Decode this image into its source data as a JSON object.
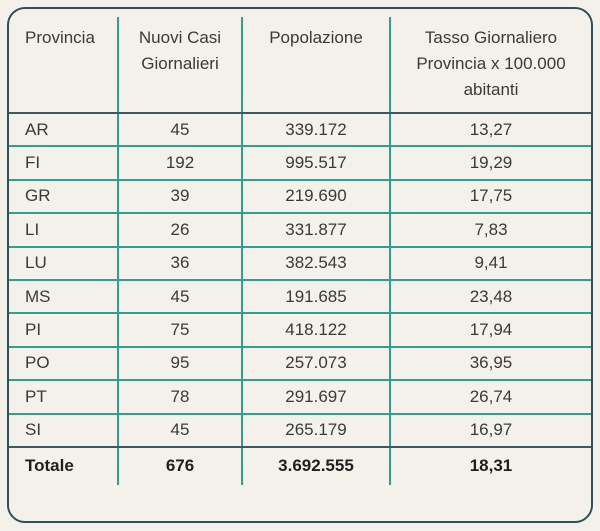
{
  "colors": {
    "bg": "#f3f1ea",
    "teal": "#2fa08c",
    "dark": "#3a5a64",
    "frame": "#2e505a",
    "text": "#3a3a3a"
  },
  "table": {
    "columns": [
      "Provincia",
      "Nuovi Casi Giornalieri",
      "Popolazione",
      "Tasso Giornaliero Provincia x 100.000 abitanti"
    ],
    "rows": [
      {
        "provincia": "AR",
        "nuovi_casi": "45",
        "popolazione": "339.172",
        "tasso": "13,27"
      },
      {
        "provincia": "FI",
        "nuovi_casi": "192",
        "popolazione": "995.517",
        "tasso": "19,29"
      },
      {
        "provincia": "GR",
        "nuovi_casi": "39",
        "popolazione": "219.690",
        "tasso": "17,75"
      },
      {
        "provincia": "LI",
        "nuovi_casi": "26",
        "popolazione": "331.877",
        "tasso": "7,83"
      },
      {
        "provincia": "LU",
        "nuovi_casi": "36",
        "popolazione": "382.543",
        "tasso": "9,41"
      },
      {
        "provincia": "MS",
        "nuovi_casi": "45",
        "popolazione": "191.685",
        "tasso": "23,48"
      },
      {
        "provincia": "PI",
        "nuovi_casi": "75",
        "popolazione": "418.122",
        "tasso": "17,94"
      },
      {
        "provincia": "PO",
        "nuovi_casi": "95",
        "popolazione": "257.073",
        "tasso": "36,95"
      },
      {
        "provincia": "PT",
        "nuovi_casi": "78",
        "popolazione": "291.697",
        "tasso": "26,74"
      },
      {
        "provincia": "SI",
        "nuovi_casi": "45",
        "popolazione": "265.179",
        "tasso": "16,97"
      }
    ],
    "total": {
      "provincia": "Totale",
      "nuovi_casi": "676",
      "popolazione": "3.692.555",
      "tasso": "18,31"
    }
  },
  "chart_data": {
    "type": "table",
    "title": "",
    "columns": [
      "Provincia",
      "Nuovi Casi Giornalieri",
      "Popolazione",
      "Tasso Giornaliero Provincia x 100.000 abitanti"
    ],
    "rows": [
      [
        "AR",
        "45",
        "339.172",
        "13,27"
      ],
      [
        "FI",
        "192",
        "995.517",
        "19,29"
      ],
      [
        "GR",
        "39",
        "219.690",
        "17,75"
      ],
      [
        "LI",
        "26",
        "331.877",
        "7,83"
      ],
      [
        "LU",
        "36",
        "382.543",
        "9,41"
      ],
      [
        "MS",
        "45",
        "191.685",
        "23,48"
      ],
      [
        "PI",
        "75",
        "418.122",
        "17,94"
      ],
      [
        "PO",
        "95",
        "257.073",
        "36,95"
      ],
      [
        "PT",
        "78",
        "291.697",
        "26,74"
      ],
      [
        "SI",
        "45",
        "265.179",
        "16,97"
      ],
      [
        "Totale",
        "676",
        "3.692.555",
        "18,31"
      ]
    ]
  }
}
